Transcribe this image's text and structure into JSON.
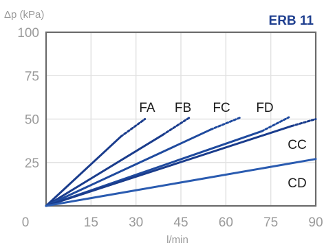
{
  "chart_data": {
    "type": "line",
    "title": "ERB 11",
    "ylabel": "Δp (kPa)",
    "xlabel": "l/min",
    "xlim": [
      0,
      90
    ],
    "ylim": [
      0,
      100
    ],
    "xticks": [
      0,
      15,
      30,
      45,
      60,
      75,
      90
    ],
    "yticks": [
      25,
      50,
      75,
      100
    ],
    "x_tick_labels": [
      "0",
      "15",
      "30",
      "45",
      "60",
      "75",
      "90"
    ],
    "y_tick_labels": [
      "25",
      "50",
      "75",
      "100"
    ],
    "grid": true,
    "series": [
      {
        "name": "FA",
        "points": [
          [
            0,
            0
          ],
          [
            25,
            40
          ]
        ],
        "dotted_to": [
          33,
          50
        ]
      },
      {
        "name": "FB",
        "points": [
          [
            0,
            0
          ],
          [
            39,
            41
          ]
        ],
        "dotted_to": [
          48,
          51
        ]
      },
      {
        "name": "FC",
        "points": [
          [
            0,
            0
          ],
          [
            55,
            44
          ]
        ],
        "dotted_to": [
          65,
          51
        ]
      },
      {
        "name": "FD",
        "points": [
          [
            0,
            0
          ],
          [
            72,
            43
          ]
        ],
        "dotted_to": [
          81,
          51
        ]
      },
      {
        "name": "CC",
        "points": [
          [
            0,
            0
          ],
          [
            82,
            46
          ]
        ],
        "dotted_to": [
          90,
          50
        ]
      },
      {
        "name": "CD",
        "points": [
          [
            0,
            0
          ],
          [
            90,
            27
          ]
        ]
      }
    ],
    "colors": {
      "FA": "#1a3c8c",
      "FB": "#1a3c8c",
      "FC": "#1f4a9e",
      "FD": "#1f4a9e",
      "CC": "#1a3c8c",
      "CD": "#2a5bb0",
      "frame": "#6a6a6a",
      "grid": "#e2e2e2",
      "title": "#1f3f8f"
    }
  }
}
